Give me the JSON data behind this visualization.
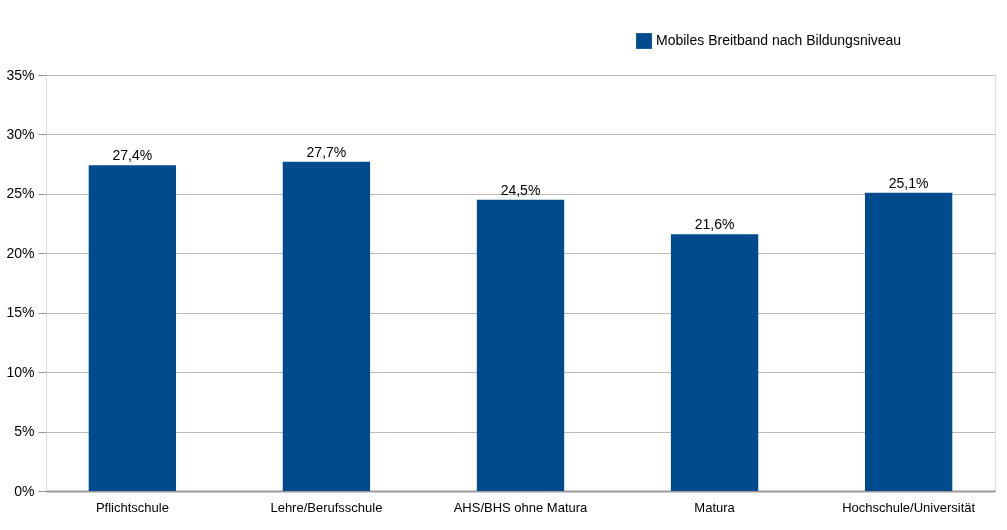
{
  "chart_data": {
    "type": "bar",
    "categories": [
      "Pflichtschule",
      "Lehre/Berufsschule",
      "AHS/BHS ohne Matura",
      "Matura",
      "Hochschule/Universität"
    ],
    "series": [
      {
        "name": "Mobiles Breitband nach Bildungsniveau",
        "color": "#004b8d",
        "values": [
          27.4,
          27.7,
          24.5,
          21.6,
          25.1
        ],
        "value_labels": [
          "27,4%",
          "27,7%",
          "24,5%",
          "21,6%",
          "25,1%"
        ]
      }
    ],
    "ylim": [
      0,
      35
    ],
    "yticks": [
      {
        "value": 0,
        "label": "0%"
      },
      {
        "value": 5,
        "label": "5%"
      },
      {
        "value": 10,
        "label": "10%"
      },
      {
        "value": 15,
        "label": "15%"
      },
      {
        "value": 20,
        "label": "20%"
      },
      {
        "value": 25,
        "label": "25%"
      },
      {
        "value": 30,
        "label": "30%"
      },
      {
        "value": 35,
        "label": "35%"
      }
    ],
    "grid": "y",
    "legend": "top right"
  }
}
